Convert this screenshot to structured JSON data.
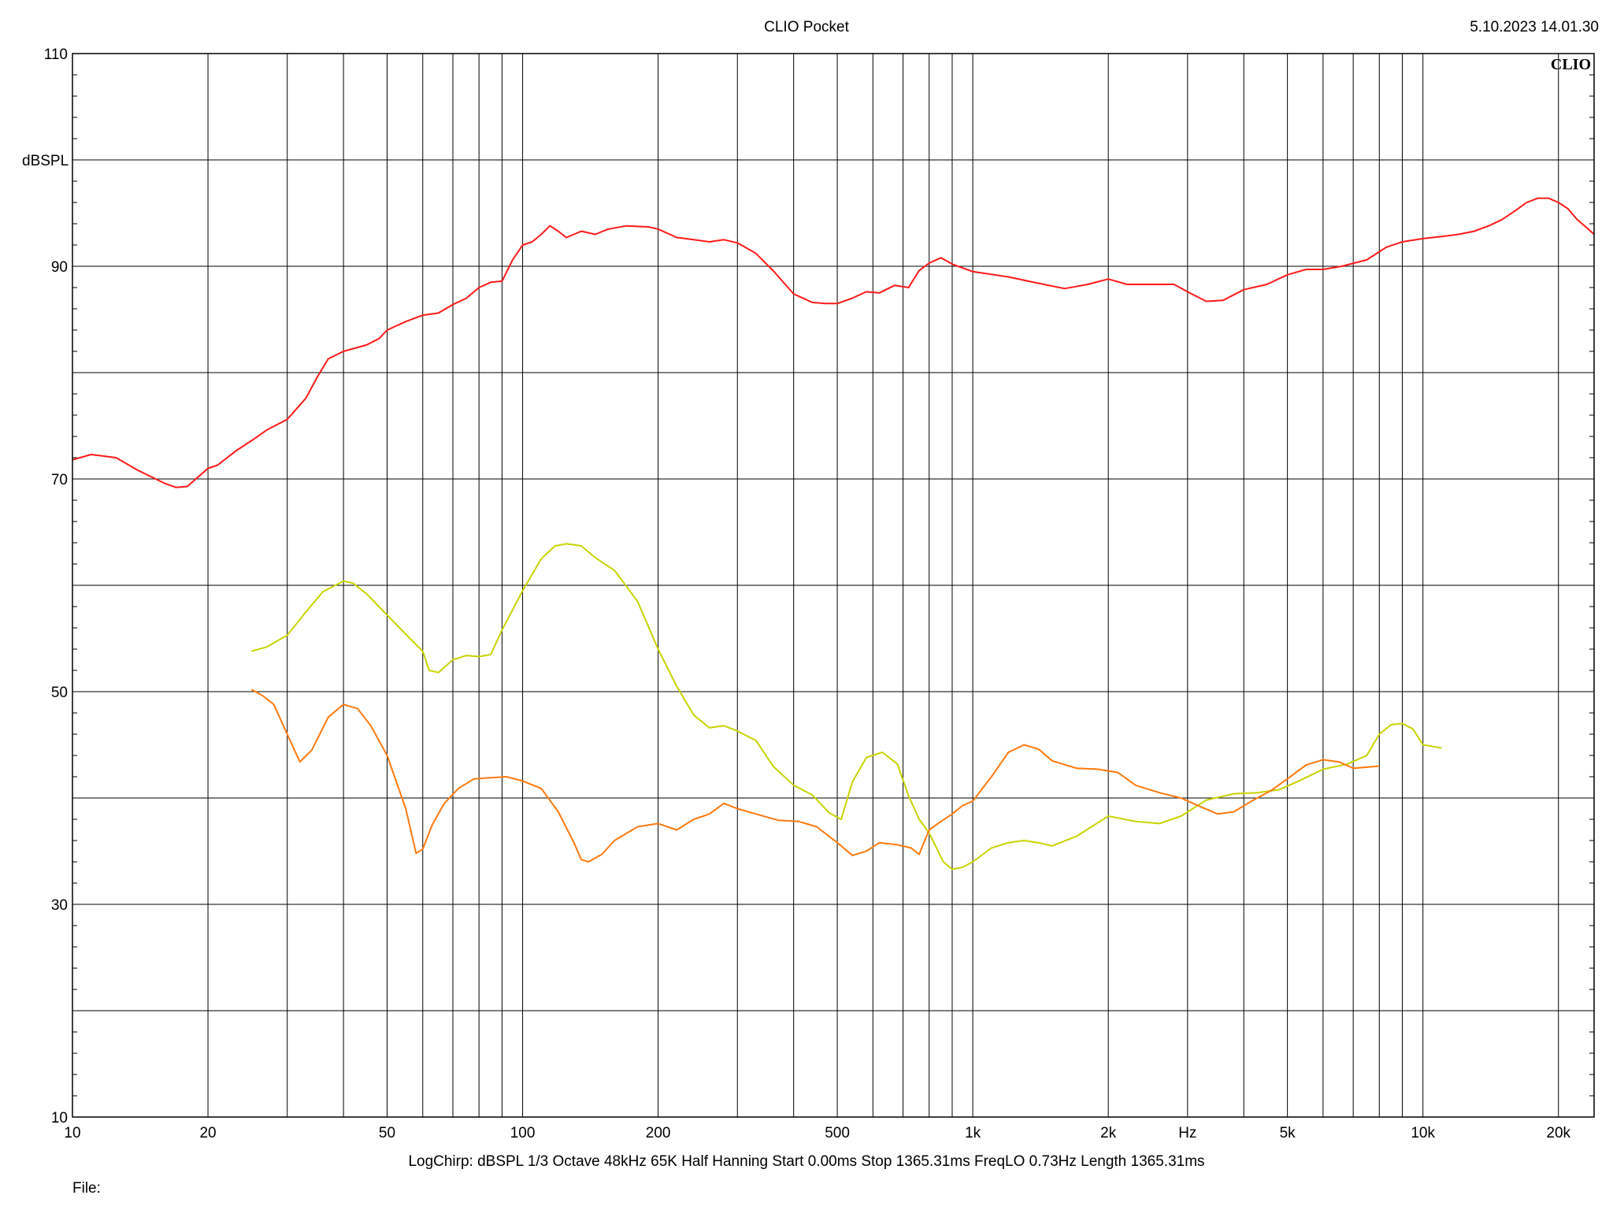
{
  "header": {
    "title": "CLIO Pocket",
    "timestamp": "5.10.2023 14.01.30",
    "brand": "CLIO"
  },
  "footer": {
    "settings": "LogChirp:  dBSPL   1/3 Octave   48kHz   65K   Half Hanning   Start 0.00ms    Stop 1365.31ms    FreqLO 0.73Hz    Length 1365.31ms",
    "file_label": "File:"
  },
  "chart_data": {
    "type": "line",
    "title": "CLIO Pocket",
    "xlabel": "Hz",
    "ylabel": "dBSPL",
    "x_scale": "log",
    "xlim": [
      10,
      24000
    ],
    "ylim": [
      10,
      110
    ],
    "grid": true,
    "x_tick_labels": [
      {
        "value": 10,
        "label": "10"
      },
      {
        "value": 20,
        "label": "20"
      },
      {
        "value": 50,
        "label": "50"
      },
      {
        "value": 100,
        "label": "100"
      },
      {
        "value": 200,
        "label": "200"
      },
      {
        "value": 500,
        "label": "500"
      },
      {
        "value": 1000,
        "label": "1k"
      },
      {
        "value": 2000,
        "label": "2k"
      },
      {
        "value": 5000,
        "label": "5k"
      },
      {
        "value": 10000,
        "label": "10k"
      },
      {
        "value": 20000,
        "label": "20k"
      }
    ],
    "y_tick_labels": [
      {
        "value": 110,
        "label": "110"
      },
      {
        "value": 90,
        "label": "90"
      },
      {
        "value": 70,
        "label": "70"
      },
      {
        "value": 50,
        "label": "50"
      },
      {
        "value": 30,
        "label": "30"
      },
      {
        "value": 10,
        "label": "10"
      }
    ],
    "series": [
      {
        "color": "#ff1a1a",
        "points": [
          [
            10,
            71.8
          ],
          [
            11,
            72.3
          ],
          [
            12.5,
            72
          ],
          [
            14,
            70.8
          ],
          [
            16,
            69.6
          ],
          [
            17,
            69.2
          ],
          [
            18,
            69.3
          ],
          [
            20,
            71
          ],
          [
            21,
            71.3
          ],
          [
            23,
            72.6
          ],
          [
            25,
            73.6
          ],
          [
            27,
            74.6
          ],
          [
            30,
            75.6
          ],
          [
            33,
            77.6
          ],
          [
            35,
            79.6
          ],
          [
            37,
            81.3
          ],
          [
            40,
            82
          ],
          [
            45,
            82.6
          ],
          [
            48,
            83.2
          ],
          [
            50,
            84
          ],
          [
            55,
            84.8
          ],
          [
            60,
            85.4
          ],
          [
            65,
            85.6
          ],
          [
            70,
            86.4
          ],
          [
            75,
            87
          ],
          [
            80,
            88
          ],
          [
            85,
            88.5
          ],
          [
            90,
            88.6
          ],
          [
            95,
            90.6
          ],
          [
            100,
            92
          ],
          [
            105,
            92.3
          ],
          [
            110,
            93
          ],
          [
            115,
            93.8
          ],
          [
            120,
            93.3
          ],
          [
            125,
            92.7
          ],
          [
            135,
            93.3
          ],
          [
            145,
            93
          ],
          [
            155,
            93.5
          ],
          [
            170,
            93.8
          ],
          [
            190,
            93.7
          ],
          [
            200,
            93.5
          ],
          [
            220,
            92.7
          ],
          [
            240,
            92.5
          ],
          [
            260,
            92.3
          ],
          [
            280,
            92.5
          ],
          [
            300,
            92.2
          ],
          [
            330,
            91.2
          ],
          [
            360,
            89.6
          ],
          [
            400,
            87.4
          ],
          [
            440,
            86.6
          ],
          [
            470,
            86.5
          ],
          [
            500,
            86.5
          ],
          [
            540,
            87
          ],
          [
            580,
            87.6
          ],
          [
            620,
            87.5
          ],
          [
            670,
            88.2
          ],
          [
            720,
            88
          ],
          [
            760,
            89.6
          ],
          [
            800,
            90.3
          ],
          [
            850,
            90.8
          ],
          [
            900,
            90.2
          ],
          [
            1000,
            89.5
          ],
          [
            1200,
            89
          ],
          [
            1400,
            88.4
          ],
          [
            1600,
            87.9
          ],
          [
            1800,
            88.3
          ],
          [
            2000,
            88.8
          ],
          [
            2200,
            88.3
          ],
          [
            2500,
            88.3
          ],
          [
            2800,
            88.3
          ],
          [
            3000,
            87.6
          ],
          [
            3300,
            86.7
          ],
          [
            3600,
            86.8
          ],
          [
            4000,
            87.8
          ],
          [
            4500,
            88.3
          ],
          [
            5000,
            89.2
          ],
          [
            5500,
            89.7
          ],
          [
            6000,
            89.7
          ],
          [
            6600,
            90
          ],
          [
            7500,
            90.6
          ],
          [
            8300,
            91.8
          ],
          [
            9000,
            92.3
          ],
          [
            10000,
            92.6
          ],
          [
            11000,
            92.8
          ],
          [
            12000,
            93
          ],
          [
            13000,
            93.3
          ],
          [
            14000,
            93.8
          ],
          [
            15000,
            94.4
          ],
          [
            16000,
            95.2
          ],
          [
            17000,
            96
          ],
          [
            18000,
            96.4
          ],
          [
            19000,
            96.4
          ],
          [
            20000,
            96
          ],
          [
            21000,
            95.4
          ],
          [
            22000,
            94.4
          ],
          [
            23000,
            93.7
          ],
          [
            24000,
            93
          ]
        ]
      },
      {
        "color": "#c8d400",
        "points": [
          [
            25,
            53.8
          ],
          [
            27,
            54.2
          ],
          [
            30,
            55.3
          ],
          [
            33,
            57.5
          ],
          [
            36,
            59.4
          ],
          [
            40,
            60.4
          ],
          [
            42,
            60.2
          ],
          [
            45,
            59.2
          ],
          [
            50,
            57.2
          ],
          [
            55,
            55.4
          ],
          [
            60,
            53.8
          ],
          [
            62,
            52
          ],
          [
            65,
            51.8
          ],
          [
            70,
            53
          ],
          [
            75,
            53.4
          ],
          [
            80,
            53.3
          ],
          [
            85,
            53.5
          ],
          [
            90,
            55.8
          ],
          [
            100,
            59.5
          ],
          [
            110,
            62.5
          ],
          [
            118,
            63.7
          ],
          [
            125,
            63.9
          ],
          [
            135,
            63.7
          ],
          [
            145,
            62.6
          ],
          [
            160,
            61.4
          ],
          [
            180,
            58.5
          ],
          [
            200,
            54
          ],
          [
            220,
            50.5
          ],
          [
            240,
            47.8
          ],
          [
            260,
            46.6
          ],
          [
            280,
            46.8
          ],
          [
            300,
            46.3
          ],
          [
            330,
            45.4
          ],
          [
            360,
            43
          ],
          [
            400,
            41.2
          ],
          [
            440,
            40.3
          ],
          [
            480,
            38.6
          ],
          [
            510,
            38
          ],
          [
            540,
            41.5
          ],
          [
            580,
            43.8
          ],
          [
            630,
            44.3
          ],
          [
            680,
            43.2
          ],
          [
            720,
            40.2
          ],
          [
            760,
            38
          ],
          [
            800,
            36.7
          ],
          [
            860,
            34
          ],
          [
            900,
            33.3
          ],
          [
            950,
            33.5
          ],
          [
            1000,
            34
          ],
          [
            1100,
            35.3
          ],
          [
            1200,
            35.8
          ],
          [
            1300,
            36
          ],
          [
            1400,
            35.8
          ],
          [
            1500,
            35.5
          ],
          [
            1700,
            36.4
          ],
          [
            2000,
            38.3
          ],
          [
            2300,
            37.8
          ],
          [
            2600,
            37.6
          ],
          [
            2900,
            38.3
          ],
          [
            3300,
            39.8
          ],
          [
            3800,
            40.4
          ],
          [
            4300,
            40.5
          ],
          [
            4800,
            40.8
          ],
          [
            5300,
            41.6
          ],
          [
            6000,
            42.7
          ],
          [
            6800,
            43.2
          ],
          [
            7500,
            44
          ],
          [
            8000,
            46
          ],
          [
            8500,
            46.9
          ],
          [
            9000,
            47
          ],
          [
            9500,
            46.5
          ],
          [
            10000,
            45
          ],
          [
            11000,
            44.7
          ]
        ]
      },
      {
        "color": "#ff7a10",
        "points": [
          [
            25,
            50.2
          ],
          [
            26.5,
            49.6
          ],
          [
            28,
            48.8
          ],
          [
            30,
            46
          ],
          [
            32,
            43.4
          ],
          [
            34,
            44.5
          ],
          [
            37,
            47.6
          ],
          [
            40,
            48.8
          ],
          [
            43,
            48.4
          ],
          [
            46,
            46.8
          ],
          [
            50,
            44
          ],
          [
            55,
            39
          ],
          [
            58,
            34.8
          ],
          [
            60,
            35.2
          ],
          [
            63,
            37.5
          ],
          [
            67,
            39.5
          ],
          [
            72,
            40.9
          ],
          [
            78,
            41.8
          ],
          [
            85,
            41.9
          ],
          [
            92,
            42
          ],
          [
            100,
            41.6
          ],
          [
            110,
            40.9
          ],
          [
            120,
            38.7
          ],
          [
            130,
            35.8
          ],
          [
            135,
            34.2
          ],
          [
            140,
            34
          ],
          [
            150,
            34.7
          ],
          [
            160,
            36
          ],
          [
            180,
            37.3
          ],
          [
            200,
            37.6
          ],
          [
            220,
            37
          ],
          [
            240,
            38
          ],
          [
            260,
            38.5
          ],
          [
            280,
            39.5
          ],
          [
            300,
            39
          ],
          [
            330,
            38.5
          ],
          [
            370,
            37.9
          ],
          [
            410,
            37.8
          ],
          [
            450,
            37.3
          ],
          [
            500,
            35.8
          ],
          [
            540,
            34.6
          ],
          [
            580,
            35
          ],
          [
            620,
            35.8
          ],
          [
            680,
            35.6
          ],
          [
            730,
            35.3
          ],
          [
            760,
            34.7
          ],
          [
            800,
            37
          ],
          [
            850,
            37.8
          ],
          [
            900,
            38.5
          ],
          [
            950,
            39.3
          ],
          [
            1000,
            39.7
          ],
          [
            1100,
            42
          ],
          [
            1200,
            44.3
          ],
          [
            1300,
            45
          ],
          [
            1400,
            44.6
          ],
          [
            1500,
            43.5
          ],
          [
            1700,
            42.8
          ],
          [
            1900,
            42.7
          ],
          [
            2100,
            42.4
          ],
          [
            2300,
            41.2
          ],
          [
            2600,
            40.5
          ],
          [
            2900,
            40
          ],
          [
            3200,
            39.2
          ],
          [
            3500,
            38.5
          ],
          [
            3800,
            38.7
          ],
          [
            4200,
            39.8
          ],
          [
            4600,
            40.7
          ],
          [
            5000,
            41.8
          ],
          [
            5500,
            43.1
          ],
          [
            6000,
            43.6
          ],
          [
            6500,
            43.4
          ],
          [
            7000,
            42.8
          ],
          [
            7500,
            42.9
          ],
          [
            8000,
            43
          ]
        ]
      }
    ]
  }
}
